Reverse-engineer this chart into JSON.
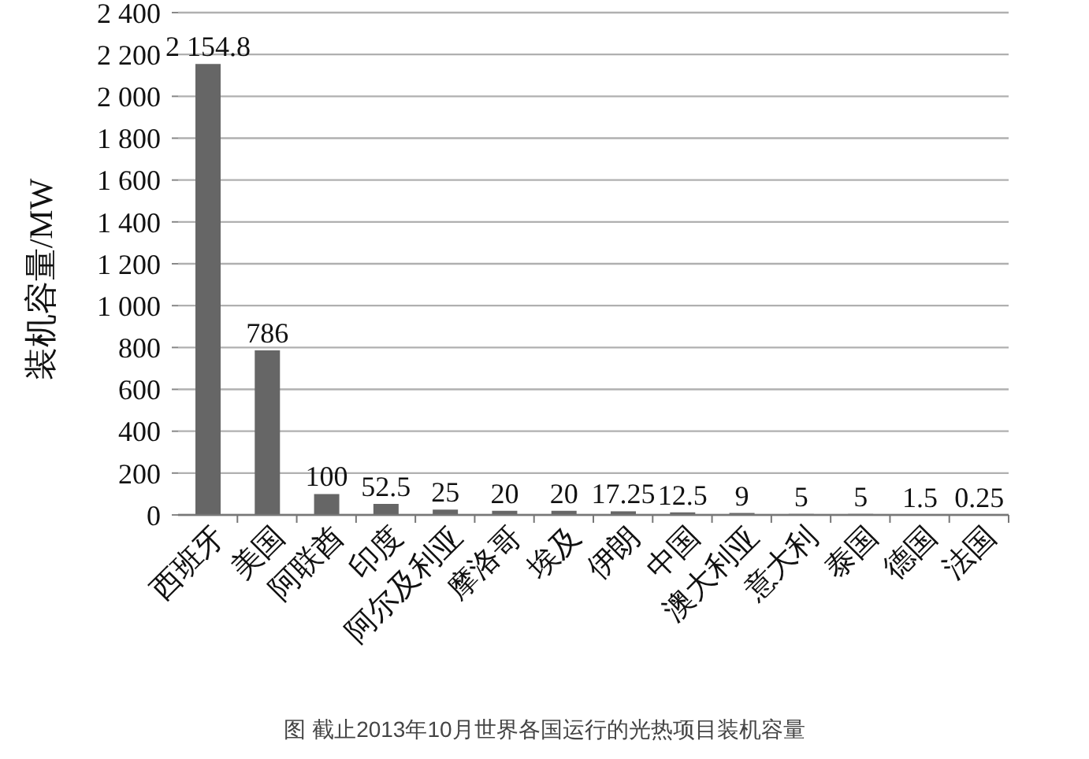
{
  "chart_data": {
    "type": "bar",
    "title": "图 截止2013年10月世界各国运行的光热项目装机容量",
    "ylabel": "装机容量/MW",
    "categories": [
      "西班牙",
      "美国",
      "阿联酋",
      "印度",
      "阿尔及利亚",
      "摩洛哥",
      "埃及",
      "伊朗",
      "中国",
      "澳大利亚",
      "意大利",
      "泰国",
      "德国",
      "法国"
    ],
    "values": [
      2154.8,
      786,
      100,
      52.5,
      25,
      20,
      20,
      17.25,
      12.5,
      9,
      5,
      5,
      1.5,
      0.25
    ],
    "value_labels": [
      "2 154.8",
      "786",
      "100",
      "52.5",
      "25",
      "20",
      "20",
      "17.25",
      "12.5",
      "9",
      "5",
      "5",
      "1.5",
      "0.25"
    ],
    "color": "#666666",
    "ylim": [
      0,
      2400
    ],
    "yticks": [
      0,
      200,
      400,
      600,
      800,
      {
        "value": 1000,
        "label": "1 000"
      },
      {
        "value": 1200,
        "label": "1 200"
      },
      {
        "value": 1400,
        "label": "1 400"
      },
      {
        "value": 1600,
        "label": "1 600"
      },
      {
        "value": 1800,
        "label": "1 800"
      },
      {
        "value": 2000,
        "label": "2 000"
      },
      {
        "value": 2200,
        "label": "2 200"
      },
      {
        "value": 2400,
        "label": "2 400"
      }
    ],
    "grid": "y"
  }
}
